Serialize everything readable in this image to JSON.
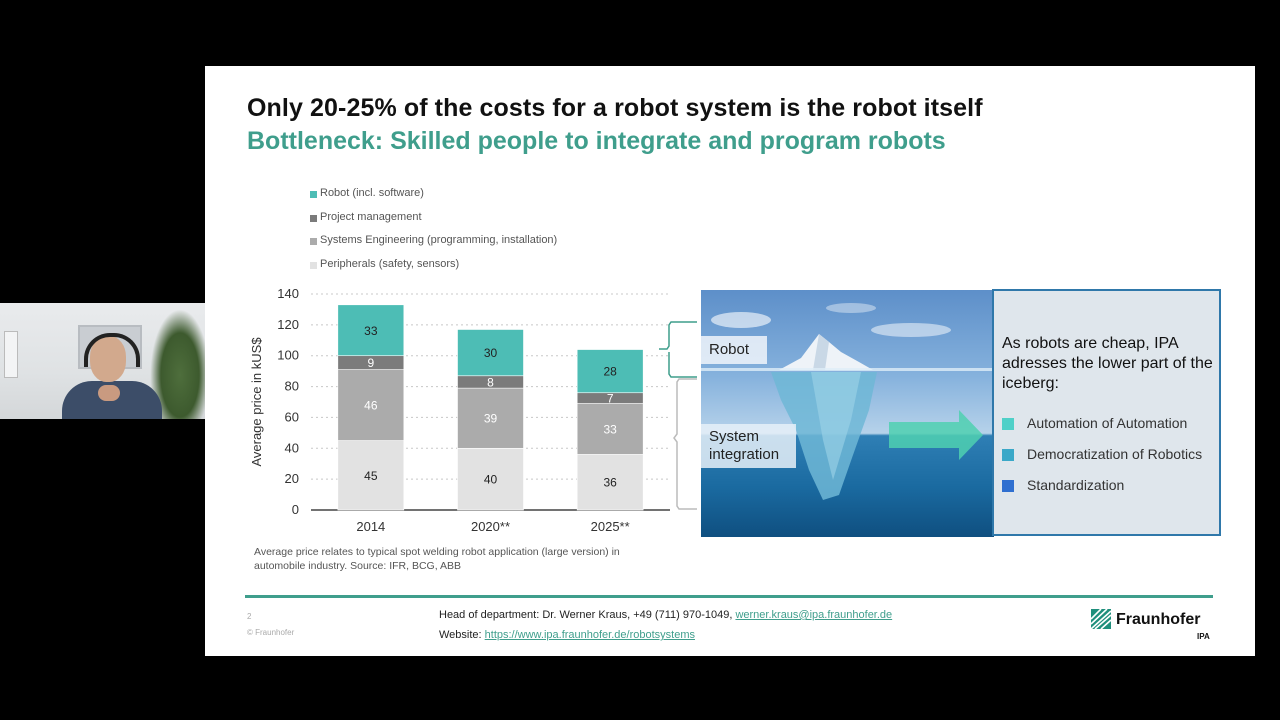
{
  "slide": {
    "title": "Only 20-25% of the costs for a robot system is the robot itself",
    "subtitle": "Bottleneck: Skilled people to integrate and program robots",
    "footnote": "Average price relates to typical spot welding robot application (large version) in automobile industry. Source: IFR, BCG, ABB",
    "page_number": "2",
    "copyright": "© Fraunhofer",
    "contact_prefix": "Head of department: Dr. Werner Kraus, +49 (711) 970-1049, ",
    "contact_email": "werner.kraus@ipa.fraunhofer.de",
    "website_prefix": "Website: ",
    "website_url": "https://www.ipa.fraunhofer.de/robotsystems",
    "logo_name": "Fraunhofer",
    "logo_sub": "IPA"
  },
  "iceberg": {
    "robot_label": "Robot",
    "system_label_line1": "System",
    "system_label_line2": "integration"
  },
  "info_box": {
    "heading": "As robots are cheap, IPA adresses the lower part of the  iceberg:",
    "items": [
      {
        "label": "Automation of Automation",
        "color": "#4fd0c8"
      },
      {
        "label": "Democratization of Robotics",
        "color": "#3aa8c8"
      },
      {
        "label": "Standardization",
        "color": "#2f6fd0"
      }
    ]
  },
  "chart_data": {
    "type": "bar",
    "stacked": true,
    "categories": [
      "2014",
      "2020**",
      "2025**"
    ],
    "ylabel": "Average price in kUS$",
    "ylim": [
      0,
      140
    ],
    "yticks": [
      0,
      20,
      40,
      60,
      80,
      100,
      120,
      140
    ],
    "grid": true,
    "legend_position": "top-left",
    "series": [
      {
        "name": "Peripherals (safety, sensors)",
        "values": [
          45,
          40,
          36
        ],
        "color": "#e2e2e2"
      },
      {
        "name": "Systems Engineering (programming, installation)",
        "values": [
          46,
          39,
          33
        ],
        "color": "#ababab"
      },
      {
        "name": "Project management",
        "values": [
          9,
          8,
          7
        ],
        "color": "#7b7b7b"
      },
      {
        "name": "Robot (incl. software)",
        "values": [
          33,
          30,
          28
        ],
        "color": "#4dbdb5"
      }
    ]
  }
}
